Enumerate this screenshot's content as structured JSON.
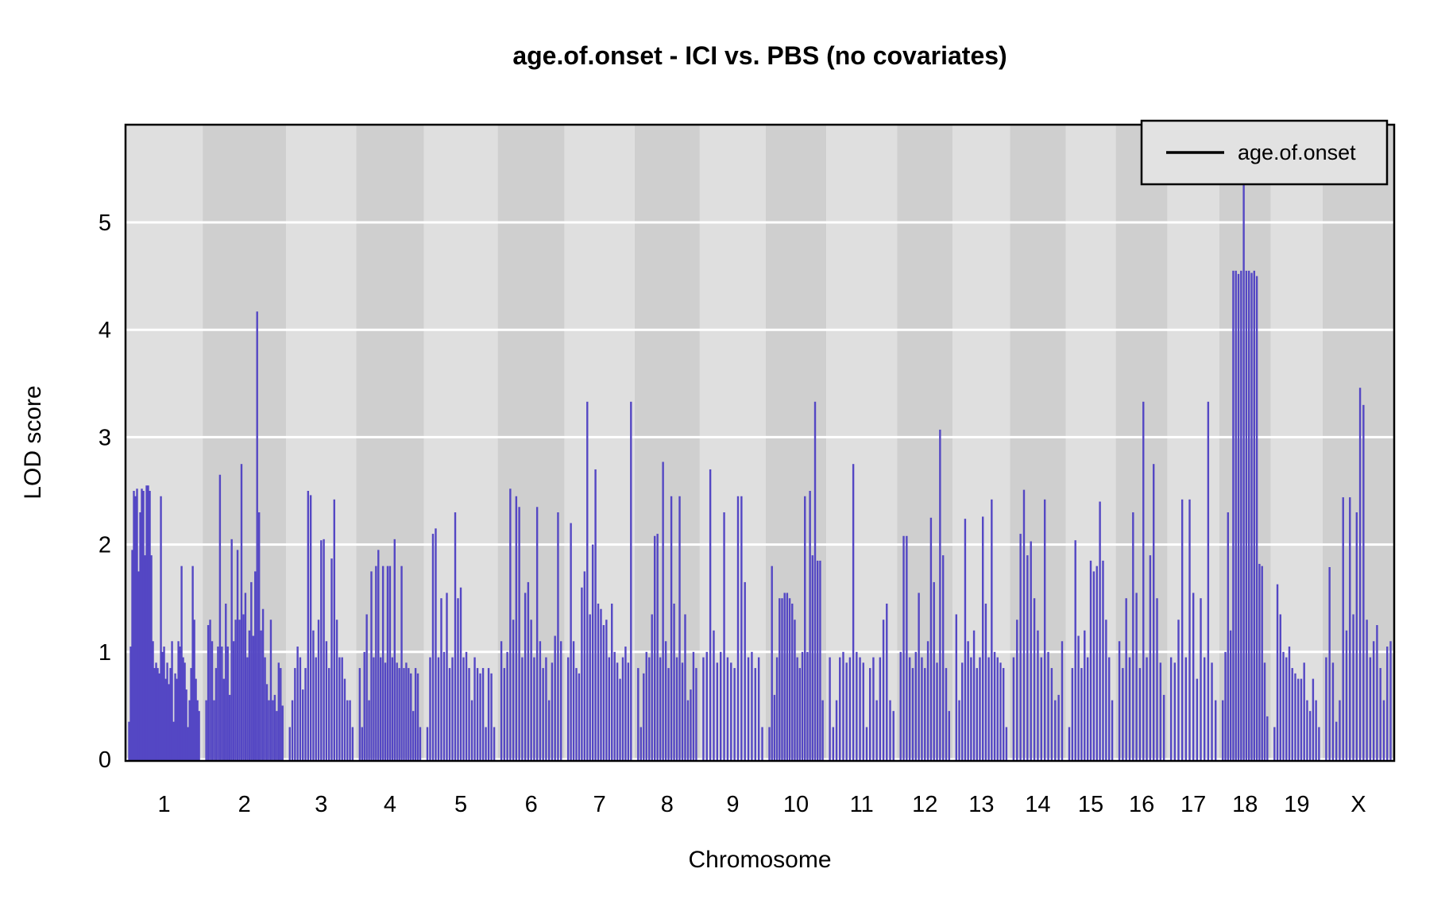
{
  "title": "age.of.onset - ICI vs. PBS (no covariates)",
  "y_axis": {
    "title": "LOD score",
    "ticks": [
      0,
      1,
      2,
      3,
      4,
      5
    ]
  },
  "x_axis": {
    "title": "Chromosome"
  },
  "legend": {
    "label": "age.of.onset"
  },
  "colors": {
    "bar": "#5447c4",
    "band_light": "#dfdfdf",
    "band_dark": "#cfcfcf",
    "grid": "#ffffff",
    "legend_fill": "#e2e2e2",
    "border": "#000000",
    "text": "#000000",
    "background": "#ffffff"
  },
  "chart_data": {
    "type": "bar",
    "title": "age.of.onset - ICI vs. PBS (no covariates)",
    "xlabel": "Chromosome",
    "ylabel": "LOD score",
    "ylim": [
      0,
      5.9
    ],
    "yticks": [
      0,
      1,
      2,
      3,
      4,
      5
    ],
    "grid": true,
    "legend_position": "top-right",
    "legend_entries": [
      "age.of.onset"
    ],
    "series_style": "vertical-lod-spikes-per-chromosome",
    "chromosomes": [
      {
        "name": "1",
        "rel_width": 97,
        "lod": [
          0.35,
          1.05,
          1.95,
          2.5,
          2.45,
          2.52,
          1.75,
          2.3,
          2.52,
          2.5,
          1.9,
          2.55,
          2.55,
          2.5,
          1.9,
          1.1,
          0.85,
          0.9,
          0.85,
          0.8,
          2.45,
          1.0,
          1.05,
          0.75,
          0.9,
          0.7,
          0.85,
          1.1,
          0.35,
          0.8,
          0.75,
          1.1,
          1.05,
          1.8,
          0.95,
          0.9,
          0.65,
          0.3,
          0.55,
          0.85,
          1.8,
          1.3,
          0.75,
          0.55,
          0.45
        ]
      },
      {
        "name": "2",
        "rel_width": 105,
        "lod": [
          0.55,
          1.25,
          1.3,
          1.1,
          0.55,
          0.85,
          1.05,
          2.65,
          1.05,
          0.75,
          1.45,
          1.05,
          0.6,
          2.05,
          1.1,
          1.3,
          1.95,
          1.3,
          2.75,
          1.35,
          1.55,
          0.95,
          1.2,
          1.65,
          1.15,
          1.75,
          4.17,
          2.3,
          1.2,
          1.4,
          0.95,
          0.7,
          0.55,
          1.3,
          0.55,
          0.6,
          0.45,
          0.9,
          0.85,
          0.5
        ]
      },
      {
        "name": "3",
        "rel_width": 88,
        "lod": [
          0.3,
          0.55,
          0.85,
          1.05,
          0.95,
          0.65,
          0.85,
          2.5,
          2.46,
          1.2,
          0.95,
          1.3,
          2.04,
          2.05,
          1.1,
          0.85,
          1.87,
          2.42,
          1.3,
          0.95,
          0.95,
          0.75,
          0.55,
          0.55,
          0.3
        ]
      },
      {
        "name": "4",
        "rel_width": 85,
        "lod": [
          0.85,
          0.3,
          1.0,
          1.35,
          0.55,
          1.75,
          0.95,
          1.8,
          1.95,
          0.95,
          1.8,
          0.9,
          1.8,
          1.8,
          0.95,
          2.05,
          0.9,
          0.85,
          1.8,
          0.85,
          0.9,
          0.85,
          0.8,
          0.45,
          0.85,
          0.8,
          0.3
        ]
      },
      {
        "name": "5",
        "rel_width": 93,
        "lod": [
          0.3,
          0.95,
          2.1,
          2.15,
          0.95,
          1.5,
          1.0,
          1.55,
          0.85,
          0.95,
          2.3,
          1.5,
          1.6,
          0.95,
          1.0,
          0.85,
          0.55,
          0.95,
          0.85,
          0.8,
          0.85,
          0.3,
          0.85,
          0.8,
          0.3
        ]
      },
      {
        "name": "6",
        "rel_width": 84,
        "lod": [
          1.1,
          0.85,
          1.0,
          2.52,
          1.3,
          2.45,
          2.35,
          0.95,
          1.55,
          1.65,
          1.3,
          0.95,
          2.35,
          1.1,
          0.85,
          0.95,
          0.55,
          0.9,
          1.15,
          2.3,
          1.1
        ]
      },
      {
        "name": "7",
        "rel_width": 88,
        "lod": [
          0.95,
          2.2,
          1.1,
          0.85,
          0.8,
          1.6,
          1.75,
          3.33,
          1.35,
          2.0,
          2.7,
          1.45,
          1.4,
          1.25,
          1.3,
          0.95,
          1.45,
          1.0,
          0.9,
          0.75,
          0.95,
          1.05,
          0.9,
          3.33
        ]
      },
      {
        "name": "8",
        "rel_width": 82,
        "lod": [
          0.85,
          0.3,
          0.8,
          1.0,
          0.95,
          1.35,
          2.08,
          2.1,
          0.95,
          2.77,
          1.1,
          0.85,
          2.45,
          1.45,
          0.95,
          2.45,
          0.9,
          1.35,
          0.55,
          0.65,
          1.0,
          0.85
        ]
      },
      {
        "name": "9",
        "rel_width": 83,
        "lod": [
          0.95,
          1.0,
          2.7,
          1.2,
          0.9,
          1.0,
          2.3,
          0.95,
          0.9,
          0.85,
          2.45,
          2.45,
          1.65,
          0.95,
          1.0,
          0.85,
          0.95,
          0.3
        ]
      },
      {
        "name": "10",
        "rel_width": 76,
        "lod": [
          0.3,
          1.8,
          0.6,
          0.95,
          1.5,
          1.5,
          1.55,
          1.55,
          1.5,
          1.45,
          1.3,
          0.95,
          0.85,
          1.0,
          2.45,
          1.0,
          2.5,
          1.9,
          3.33,
          1.85,
          1.85,
          0.55
        ]
      },
      {
        "name": "11",
        "rel_width": 89,
        "lod": [
          0.95,
          0.3,
          0.55,
          0.95,
          1.0,
          0.9,
          0.95,
          2.75,
          1.0,
          0.95,
          0.9,
          0.3,
          0.85,
          0.95,
          0.55,
          0.95,
          1.3,
          1.45,
          0.55,
          0.45
        ]
      },
      {
        "name": "12",
        "rel_width": 70,
        "lod": [
          1.0,
          2.08,
          2.08,
          0.95,
          0.85,
          1.0,
          1.55,
          0.95,
          0.85,
          1.1,
          2.25,
          1.65,
          0.9,
          3.07,
          1.9,
          0.85,
          0.45
        ]
      },
      {
        "name": "13",
        "rel_width": 72,
        "lod": [
          1.35,
          0.55,
          0.9,
          2.24,
          1.1,
          0.95,
          1.2,
          0.85,
          0.95,
          2.26,
          1.45,
          0.95,
          2.42,
          1.0,
          0.95,
          0.9,
          0.85,
          0.3
        ]
      },
      {
        "name": "14",
        "rel_width": 70,
        "lod": [
          0.95,
          1.3,
          2.1,
          2.51,
          1.9,
          2.03,
          1.5,
          1.2,
          0.95,
          2.42,
          1.0,
          0.85,
          0.55,
          0.6,
          1.1
        ]
      },
      {
        "name": "15",
        "rel_width": 63,
        "lod": [
          0.3,
          0.85,
          2.04,
          1.15,
          0.85,
          1.2,
          0.95,
          1.85,
          1.75,
          1.8,
          2.4,
          1.85,
          1.3,
          0.95,
          0.55
        ]
      },
      {
        "name": "16",
        "rel_width": 65,
        "lod": [
          1.1,
          0.85,
          1.5,
          0.95,
          2.3,
          1.55,
          0.85,
          3.33,
          0.95,
          1.9,
          2.75,
          1.5,
          0.9,
          0.6
        ]
      },
      {
        "name": "17",
        "rel_width": 65,
        "lod": [
          0.95,
          0.9,
          1.3,
          2.42,
          0.95,
          2.42,
          1.55,
          0.75,
          1.5,
          0.95,
          3.33,
          0.9,
          0.55
        ]
      },
      {
        "name": "18",
        "rel_width": 65,
        "lod": [
          0.55,
          1.0,
          2.3,
          1.2,
          4.55,
          4.55,
          4.52,
          4.55,
          5.6,
          4.55,
          4.55,
          4.53,
          4.55,
          4.5,
          1.82,
          1.8,
          0.9,
          0.4
        ]
      },
      {
        "name": "19",
        "rel_width": 65,
        "lod": [
          0.3,
          1.63,
          1.35,
          1.0,
          0.95,
          1.05,
          0.85,
          0.8,
          0.75,
          0.75,
          0.9,
          0.55,
          0.45,
          0.75,
          0.55,
          0.3
        ]
      },
      {
        "name": "X",
        "rel_width": 90,
        "lod": [
          0.95,
          1.79,
          0.9,
          0.35,
          0.55,
          2.44,
          1.2,
          2.44,
          1.35,
          2.3,
          3.46,
          3.3,
          1.3,
          0.95,
          1.1,
          1.25,
          0.85,
          0.55,
          1.05,
          1.1
        ]
      }
    ]
  }
}
